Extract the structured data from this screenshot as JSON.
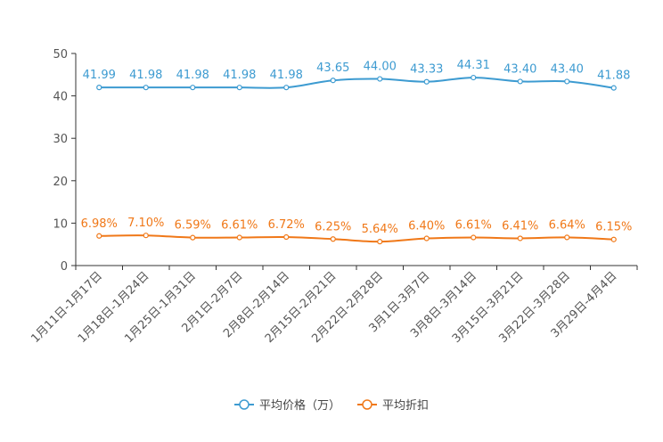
{
  "chart_data": {
    "type": "line",
    "categories": [
      "1月11日-1月17日",
      "1月18日-1月24日",
      "1月25日-1月31日",
      "2月1日-2月7日",
      "2月8日-2月14日",
      "2月15日-2月21日",
      "2月22日-2月28日",
      "3月1日-3月7日",
      "3月8日-3月14日",
      "3月15日-3月21日",
      "3月22日-3月28日",
      "3月29日-4月4日"
    ],
    "ylim": [
      0,
      50
    ],
    "yticks": [
      0,
      10,
      20,
      30,
      40,
      50
    ],
    "series": [
      {
        "name": "平均价格（万）",
        "color": "#3d9bd1",
        "values": [
          41.99,
          41.98,
          41.98,
          41.98,
          41.98,
          43.65,
          44.0,
          43.33,
          44.31,
          43.4,
          43.4,
          41.88
        ],
        "labels": [
          "41.99",
          "41.98",
          "41.98",
          "41.98",
          "41.98",
          "43.65",
          "44.00",
          "43.33",
          "44.31",
          "43.40",
          "43.40",
          "41.88"
        ]
      },
      {
        "name": "平均折扣",
        "color": "#f07818",
        "values": [
          6.98,
          7.1,
          6.59,
          6.61,
          6.72,
          6.25,
          5.64,
          6.4,
          6.61,
          6.41,
          6.64,
          6.15
        ],
        "labels": [
          "6.98%",
          "7.10%",
          "6.59%",
          "6.61%",
          "6.72%",
          "6.25%",
          "5.64%",
          "6.40%",
          "6.61%",
          "6.41%",
          "6.64%",
          "6.15%"
        ]
      }
    ],
    "legend_position": "bottom-center"
  }
}
